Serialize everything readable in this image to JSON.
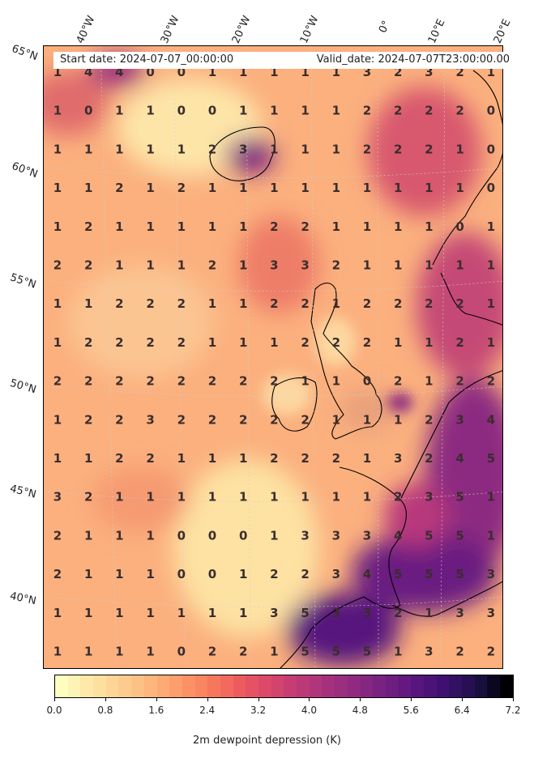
{
  "header": {
    "start_date": "Start date: 2024-07-07_00:00:00",
    "valid_date": "Valid_date: 2024-07-07T23:00:00.00"
  },
  "lon_labels": [
    "40°W",
    "30°W",
    "20°W",
    "10°W",
    "0°",
    "10°E",
    "20°E"
  ],
  "lat_labels": [
    "65°N",
    "60°N",
    "55°N",
    "50°N",
    "45°N",
    "40°N"
  ],
  "grid_values": [
    [
      1,
      4,
      4,
      0,
      0,
      1,
      1,
      1,
      1,
      1,
      3,
      2,
      3,
      2,
      1
    ],
    [
      1,
      0,
      1,
      1,
      0,
      0,
      1,
      1,
      1,
      1,
      2,
      2,
      2,
      2,
      0
    ],
    [
      1,
      1,
      1,
      1,
      1,
      2,
      3,
      1,
      1,
      1,
      2,
      2,
      2,
      1,
      0
    ],
    [
      1,
      1,
      2,
      1,
      2,
      1,
      1,
      1,
      1,
      1,
      1,
      1,
      1,
      1,
      0
    ],
    [
      1,
      2,
      1,
      1,
      1,
      1,
      1,
      2,
      2,
      1,
      1,
      1,
      1,
      0,
      1
    ],
    [
      2,
      2,
      1,
      1,
      1,
      2,
      1,
      3,
      3,
      2,
      1,
      1,
      1,
      1,
      1
    ],
    [
      1,
      1,
      2,
      2,
      2,
      1,
      1,
      2,
      2,
      1,
      2,
      2,
      2,
      2,
      1
    ],
    [
      1,
      2,
      2,
      2,
      2,
      1,
      1,
      1,
      2,
      2,
      2,
      1,
      1,
      2,
      1
    ],
    [
      2,
      2,
      2,
      2,
      2,
      2,
      2,
      2,
      1,
      1,
      0,
      2,
      1,
      2,
      2
    ],
    [
      1,
      2,
      2,
      3,
      2,
      2,
      2,
      2,
      2,
      1,
      1,
      1,
      2,
      3,
      4
    ],
    [
      1,
      1,
      2,
      2,
      1,
      1,
      1,
      2,
      2,
      2,
      1,
      3,
      2,
      4,
      5
    ],
    [
      3,
      2,
      1,
      1,
      1,
      1,
      1,
      1,
      1,
      1,
      1,
      2,
      3,
      5,
      1
    ],
    [
      2,
      1,
      1,
      1,
      0,
      0,
      0,
      1,
      3,
      3,
      3,
      4,
      5,
      5,
      1
    ],
    [
      2,
      1,
      1,
      1,
      0,
      0,
      1,
      2,
      2,
      3,
      4,
      5,
      5,
      5,
      3
    ],
    [
      1,
      1,
      1,
      1,
      1,
      1,
      1,
      3,
      5,
      3,
      3,
      2,
      1,
      3,
      3
    ],
    [
      1,
      1,
      1,
      1,
      0,
      2,
      2,
      1,
      5,
      5,
      5,
      1,
      3,
      2,
      2
    ]
  ],
  "colorbar": {
    "ticks": [
      "0.0",
      "0.8",
      "1.6",
      "2.4",
      "3.2",
      "4.0",
      "4.8",
      "5.6",
      "6.4",
      "7.2"
    ],
    "label": "2m dewpoint depression (K)",
    "min": 0.0,
    "max": 7.2,
    "colors": [
      "#fcfdbf",
      "#fde5a5",
      "#fecf92",
      "#feb67c",
      "#fd9a6a",
      "#f97c5d",
      "#ee5b5e",
      "#d9466b",
      "#c03a76",
      "#a5317e",
      "#8c2981",
      "#721f81",
      "#57157e",
      "#3b0f70",
      "#1d1147",
      "#000004"
    ]
  }
}
